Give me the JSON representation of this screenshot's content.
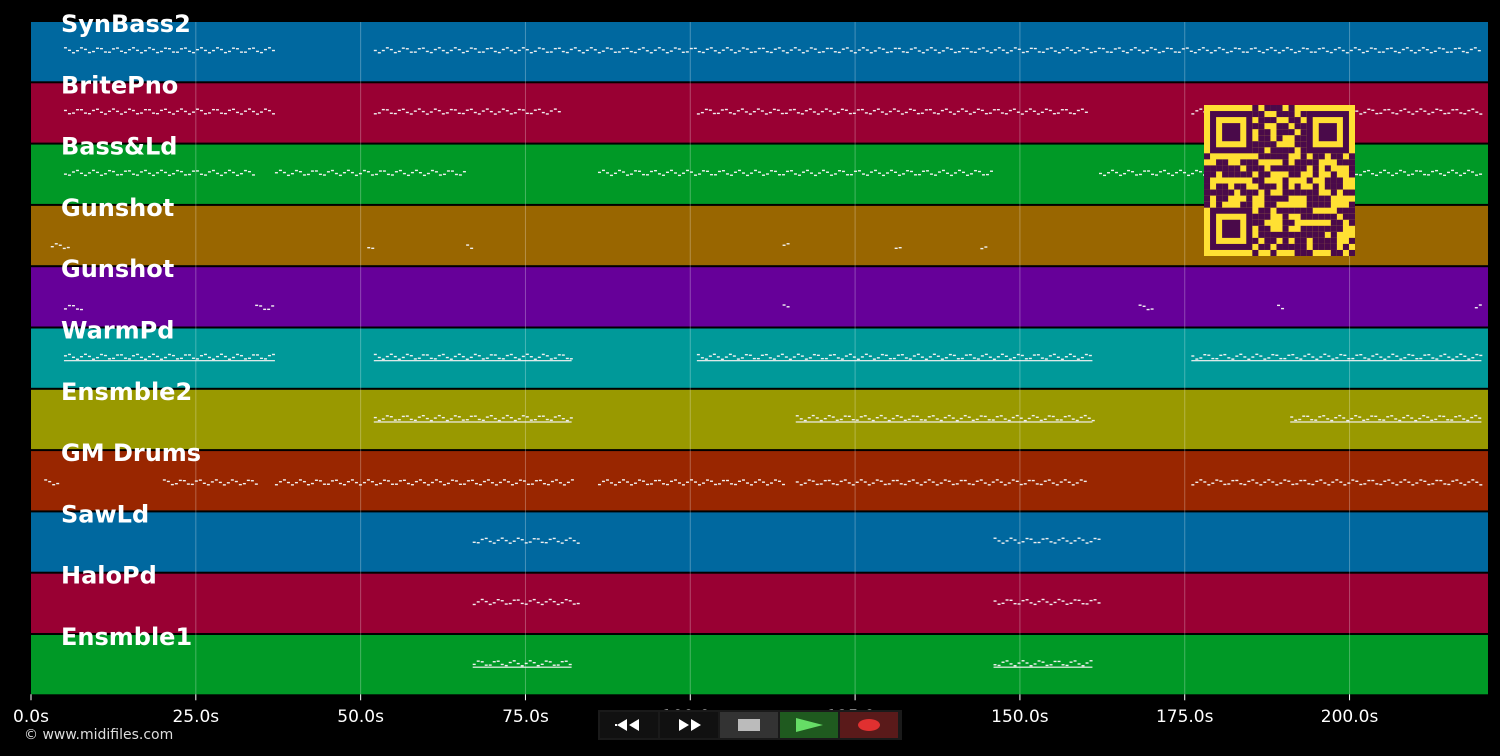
{
  "copyright": "© www.midifiles.com",
  "time_axis": {
    "duration_s": 221,
    "ticks": [
      "0.0s",
      "25.0s",
      "50.0s",
      "75.0s",
      "100.0s",
      "125.0s",
      "150.0s",
      "175.0s",
      "200.0s"
    ],
    "tick_values": [
      0,
      25,
      50,
      75,
      100,
      125,
      150,
      175,
      200
    ]
  },
  "tracks": [
    {
      "name": "SynBass2",
      "color": "#00689f"
    },
    {
      "name": "BritePno",
      "color": "#990033"
    },
    {
      "name": "Bass&Ld",
      "color": "#009926"
    },
    {
      "name": "Gunshot",
      "color": "#996600"
    },
    {
      "name": "Gunshot",
      "color": "#660099"
    },
    {
      "name": "WarmPd",
      "color": "#009999"
    },
    {
      "name": "Ensmble2",
      "color": "#999900"
    },
    {
      "name": "GM Drums",
      "color": "#992600"
    },
    {
      "name": "SawLd",
      "color": "#00689f"
    },
    {
      "name": "HaloPd",
      "color": "#990033"
    },
    {
      "name": "Ensmble1",
      "color": "#009926"
    }
  ],
  "note_regions": [
    [
      [
        5,
        37
      ],
      [
        52,
        220
      ]
    ],
    [
      [
        5,
        37
      ],
      [
        52,
        80
      ],
      [
        101,
        160
      ],
      [
        176,
        220
      ]
    ],
    [
      [
        5,
        34
      ],
      [
        37,
        66
      ],
      [
        86,
        146
      ],
      [
        162,
        220
      ]
    ],
    [
      [
        3,
        6
      ],
      [
        51,
        52
      ],
      [
        66,
        67
      ],
      [
        114,
        115
      ],
      [
        131,
        132
      ],
      [
        144,
        145
      ]
    ],
    [
      [
        5,
        8
      ],
      [
        34,
        37
      ],
      [
        114,
        115
      ],
      [
        168,
        170
      ],
      [
        189,
        190
      ],
      [
        219,
        220
      ]
    ],
    [
      [
        5,
        37
      ],
      [
        52,
        82
      ],
      [
        101,
        161
      ],
      [
        176,
        220
      ]
    ],
    [
      [
        52,
        82
      ],
      [
        116,
        161
      ],
      [
        191,
        220
      ]
    ],
    [
      [
        2,
        4
      ],
      [
        20,
        34
      ],
      [
        37,
        82
      ],
      [
        86,
        114
      ],
      [
        116,
        160
      ],
      [
        176,
        220
      ]
    ],
    [
      [
        67,
        83
      ],
      [
        146,
        162
      ]
    ],
    [
      [
        67,
        83
      ],
      [
        146,
        162
      ]
    ],
    [
      [
        67,
        82
      ],
      [
        146,
        161
      ]
    ]
  ],
  "transport": {
    "rewind": "rewind-icon",
    "forward": "fast-forward-icon",
    "stop": "stop-icon",
    "play": "play-icon",
    "record": "record-icon"
  }
}
